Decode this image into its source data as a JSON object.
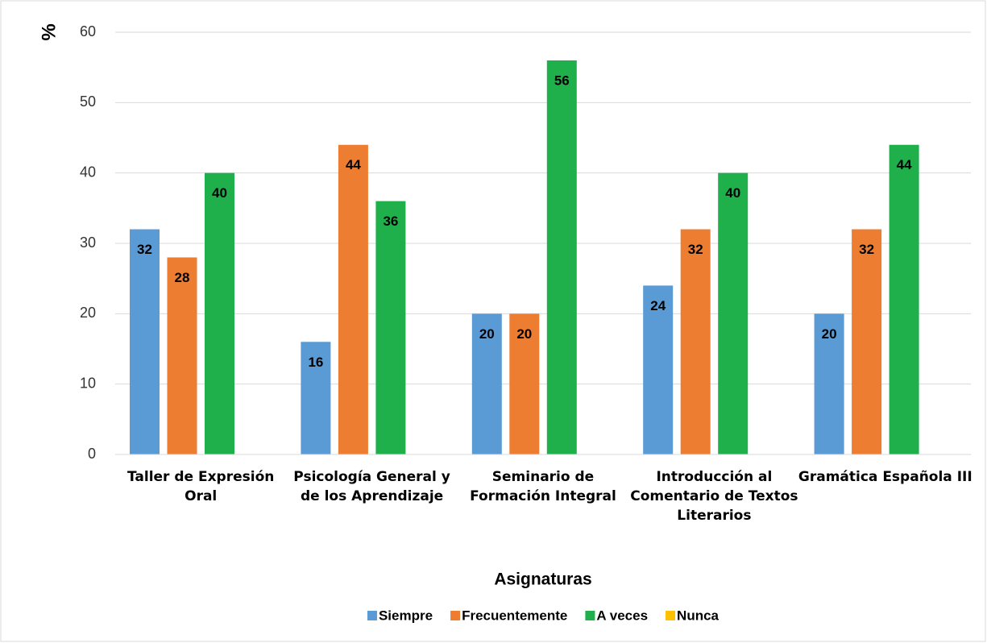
{
  "chart_data": {
    "type": "bar",
    "ylabel": "%",
    "xlabel": "Asignaturas",
    "categories": [
      "Taller de Expresión Oral",
      "Psicología General y de los Aprendizaje",
      "Seminario de Formación Integral",
      "Introducción al Comentario de Textos Literarios",
      "Gramática Española III"
    ],
    "series": [
      {
        "name": "Siempre",
        "color": "#5b9bd5",
        "values": [
          32,
          16,
          20,
          24,
          20
        ]
      },
      {
        "name": "Frecuentemente",
        "color": "#ed7d31",
        "values": [
          28,
          44,
          20,
          32,
          32
        ]
      },
      {
        "name": "A veces",
        "color": "#1fb04c",
        "values": [
          40,
          36,
          56,
          40,
          44
        ]
      },
      {
        "name": "Nunca",
        "color": "#ffc000",
        "values": [
          0,
          0,
          0,
          0,
          0
        ]
      }
    ],
    "ylim": [
      0,
      60
    ],
    "yticks": [
      0,
      10,
      20,
      30,
      40,
      50,
      60
    ],
    "grid": true,
    "legend": "bottom"
  }
}
